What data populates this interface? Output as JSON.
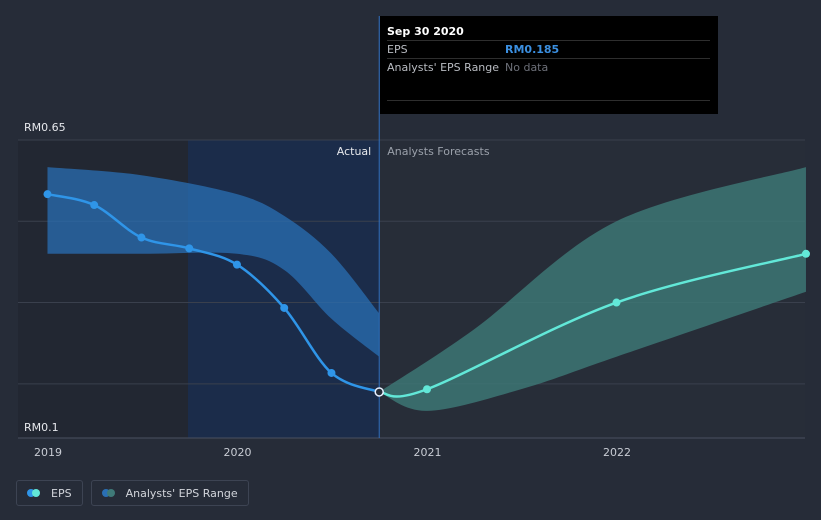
{
  "colors": {
    "actual_line": "#2f95e8",
    "actual_band": "#2a6fb4",
    "forecast_line": "#62e8d8",
    "forecast_band": "#3f7a78",
    "background": "#262c38",
    "actual_region": "#1b2c4a"
  },
  "tooltip": {
    "date": "Sep 30 2020",
    "eps_label": "EPS",
    "eps_value": "RM0.185",
    "range_label": "Analysts' EPS Range",
    "range_value": "No data"
  },
  "legend": {
    "eps_label": "EPS",
    "range_label": "Analysts' EPS Range"
  },
  "chart_data": {
    "type": "line",
    "y_max_label": "RM0.65",
    "y_min_label": "RM0.1",
    "ylim": [
      0.1,
      0.65
    ],
    "x_tick_labels": [
      "2019",
      "2020",
      "2021",
      "2022"
    ],
    "region_labels": {
      "actual": "Actual",
      "forecast": "Analysts Forecasts"
    },
    "divider_date": "2020-09-30",
    "series": [
      {
        "key": "eps_actual",
        "points": [
          {
            "x": "2018-12-31",
            "y": 0.55
          },
          {
            "x": "2019-03-31",
            "y": 0.53
          },
          {
            "x": "2019-06-30",
            "y": 0.47
          },
          {
            "x": "2019-09-30",
            "y": 0.45
          },
          {
            "x": "2019-12-31",
            "y": 0.42
          },
          {
            "x": "2020-03-31",
            "y": 0.34
          },
          {
            "x": "2020-06-30",
            "y": 0.22
          },
          {
            "x": "2020-09-30",
            "y": 0.185
          }
        ]
      },
      {
        "key": "eps_forecast",
        "points": [
          {
            "x": "2020-09-30",
            "y": 0.185
          },
          {
            "x": "2020-12-31",
            "y": 0.19
          },
          {
            "x": "2021-12-31",
            "y": 0.35
          },
          {
            "x": "2022-12-31",
            "y": 0.44
          }
        ]
      }
    ],
    "bands": [
      {
        "key": "actual_range",
        "upper": [
          {
            "x": "2018-12-31",
            "y": 0.6
          },
          {
            "x": "2019-06-30",
            "y": 0.585
          },
          {
            "x": "2019-12-31",
            "y": 0.55
          },
          {
            "x": "2020-03-31",
            "y": 0.51
          },
          {
            "x": "2020-06-30",
            "y": 0.44
          },
          {
            "x": "2020-09-30",
            "y": 0.33
          }
        ],
        "lower": [
          {
            "x": "2018-12-31",
            "y": 0.44
          },
          {
            "x": "2019-06-30",
            "y": 0.44
          },
          {
            "x": "2019-12-31",
            "y": 0.44
          },
          {
            "x": "2020-03-31",
            "y": 0.41
          },
          {
            "x": "2020-06-30",
            "y": 0.32
          },
          {
            "x": "2020-09-30",
            "y": 0.25
          }
        ]
      },
      {
        "key": "forecast_range",
        "upper": [
          {
            "x": "2020-09-30",
            "y": 0.185
          },
          {
            "x": "2021-03-31",
            "y": 0.3
          },
          {
            "x": "2021-12-31",
            "y": 0.5
          },
          {
            "x": "2022-12-31",
            "y": 0.6
          }
        ],
        "lower": [
          {
            "x": "2020-09-30",
            "y": 0.185
          },
          {
            "x": "2020-12-31",
            "y": 0.15
          },
          {
            "x": "2021-06-30",
            "y": 0.19
          },
          {
            "x": "2021-12-31",
            "y": 0.25
          },
          {
            "x": "2022-12-31",
            "y": 0.37
          }
        ]
      }
    ],
    "grid": true,
    "legend_position": "bottom-left"
  }
}
